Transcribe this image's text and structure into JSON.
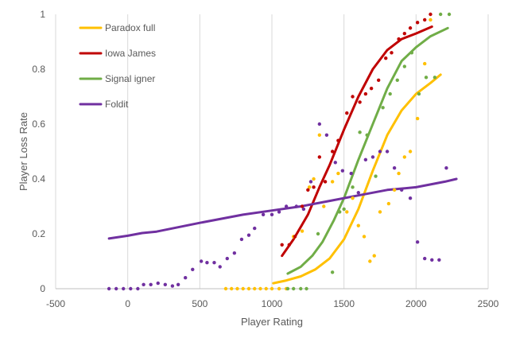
{
  "chart_data": {
    "type": "line",
    "title": "",
    "xlabel": "Player Rating",
    "ylabel": "Player Loss Rate",
    "xlim": [
      -500,
      2500
    ],
    "ylim": [
      0,
      1
    ],
    "x_ticks": [
      "-500",
      "0",
      "500",
      "1000",
      "1500",
      "2000",
      "2500"
    ],
    "y_ticks": [
      "0",
      "0.2",
      "0.4",
      "0.6",
      "0.8",
      "1"
    ],
    "grid": "vertical",
    "legend_position": "top-left",
    "series": [
      {
        "name": "Paradox full",
        "color": "#FFC000",
        "line": [
          [
            1010,
            0.02
          ],
          [
            1100,
            0.03
          ],
          [
            1200,
            0.045
          ],
          [
            1300,
            0.07
          ],
          [
            1400,
            0.11
          ],
          [
            1500,
            0.18
          ],
          [
            1600,
            0.29
          ],
          [
            1700,
            0.43
          ],
          [
            1800,
            0.56
          ],
          [
            1900,
            0.65
          ],
          [
            2000,
            0.71
          ],
          [
            2100,
            0.75
          ],
          [
            2170,
            0.78
          ]
        ],
        "points": [
          [
            680,
            0
          ],
          [
            720,
            0
          ],
          [
            760,
            0
          ],
          [
            800,
            0
          ],
          [
            840,
            0
          ],
          [
            880,
            0
          ],
          [
            920,
            0
          ],
          [
            960,
            0
          ],
          [
            1000,
            0
          ],
          [
            1050,
            0
          ],
          [
            1100,
            0
          ],
          [
            1150,
            0.19
          ],
          [
            1210,
            0.21
          ],
          [
            1260,
            0.37
          ],
          [
            1290,
            0.4
          ],
          [
            1330,
            0.56
          ],
          [
            1360,
            0.3
          ],
          [
            1420,
            0.39
          ],
          [
            1460,
            0.42
          ],
          [
            1520,
            0.28
          ],
          [
            1560,
            0.33
          ],
          [
            1600,
            0.23
          ],
          [
            1640,
            0.19
          ],
          [
            1680,
            0.1
          ],
          [
            1710,
            0.12
          ],
          [
            1750,
            0.28
          ],
          [
            1810,
            0.31
          ],
          [
            1850,
            0.36
          ],
          [
            1880,
            0.42
          ],
          [
            1920,
            0.48
          ],
          [
            1960,
            0.5
          ],
          [
            2010,
            0.62
          ],
          [
            2060,
            0.82
          ],
          [
            2100,
            0.98
          ]
        ]
      },
      {
        "name": "Iowa James",
        "color": "#C00000",
        "line": [
          [
            1070,
            0.12
          ],
          [
            1150,
            0.18
          ],
          [
            1250,
            0.27
          ],
          [
            1330,
            0.37
          ],
          [
            1400,
            0.45
          ],
          [
            1500,
            0.58
          ],
          [
            1600,
            0.7
          ],
          [
            1700,
            0.8
          ],
          [
            1800,
            0.87
          ],
          [
            1900,
            0.91
          ],
          [
            2000,
            0.93
          ],
          [
            2110,
            0.955
          ]
        ],
        "points": [
          [
            1070,
            0.16
          ],
          [
            1120,
            0.16
          ],
          [
            1160,
            0.19
          ],
          [
            1210,
            0.3
          ],
          [
            1250,
            0.36
          ],
          [
            1290,
            0.37
          ],
          [
            1330,
            0.48
          ],
          [
            1370,
            0.39
          ],
          [
            1420,
            0.5
          ],
          [
            1460,
            0.54
          ],
          [
            1520,
            0.64
          ],
          [
            1560,
            0.7
          ],
          [
            1610,
            0.68
          ],
          [
            1650,
            0.71
          ],
          [
            1690,
            0.73
          ],
          [
            1740,
            0.76
          ],
          [
            1790,
            0.84
          ],
          [
            1830,
            0.86
          ],
          [
            1880,
            0.91
          ],
          [
            1920,
            0.93
          ],
          [
            1960,
            0.95
          ],
          [
            2010,
            0.97
          ],
          [
            2060,
            0.98
          ],
          [
            2100,
            1.0
          ]
        ]
      },
      {
        "name": "Signal igner",
        "color": "#70AD47",
        "line": [
          [
            1110,
            0.055
          ],
          [
            1200,
            0.08
          ],
          [
            1280,
            0.12
          ],
          [
            1350,
            0.17
          ],
          [
            1430,
            0.25
          ],
          [
            1500,
            0.33
          ],
          [
            1600,
            0.47
          ],
          [
            1700,
            0.6
          ],
          [
            1800,
            0.73
          ],
          [
            1900,
            0.83
          ],
          [
            2000,
            0.88
          ],
          [
            2100,
            0.92
          ],
          [
            2220,
            0.95
          ]
        ],
        "points": [
          [
            1110,
            0
          ],
          [
            1150,
            0
          ],
          [
            1200,
            0
          ],
          [
            1240,
            0
          ],
          [
            1320,
            0.2
          ],
          [
            1420,
            0.06
          ],
          [
            1470,
            0.28
          ],
          [
            1500,
            0.29
          ],
          [
            1560,
            0.37
          ],
          [
            1610,
            0.57
          ],
          [
            1660,
            0.56
          ],
          [
            1720,
            0.41
          ],
          [
            1770,
            0.66
          ],
          [
            1820,
            0.71
          ],
          [
            1870,
            0.76
          ],
          [
            1920,
            0.81
          ],
          [
            1970,
            0.86
          ],
          [
            2020,
            0.71
          ],
          [
            2070,
            0.77
          ],
          [
            2130,
            0.77
          ],
          [
            2170,
            1.0
          ],
          [
            2230,
            1.0
          ]
        ]
      },
      {
        "name": "Foldit",
        "color": "#7030A0",
        "line": [
          [
            -130,
            0.183
          ],
          [
            0,
            0.193
          ],
          [
            100,
            0.203
          ],
          [
            200,
            0.208
          ],
          [
            500,
            0.24
          ],
          [
            800,
            0.27
          ],
          [
            1000,
            0.285
          ],
          [
            1200,
            0.3
          ],
          [
            1400,
            0.32
          ],
          [
            1600,
            0.34
          ],
          [
            1800,
            0.36
          ],
          [
            2000,
            0.37
          ],
          [
            2100,
            0.38
          ],
          [
            2200,
            0.39
          ],
          [
            2280,
            0.4
          ]
        ],
        "points": [
          [
            -130,
            0
          ],
          [
            -80,
            0
          ],
          [
            -30,
            0
          ],
          [
            20,
            0
          ],
          [
            70,
            0
          ],
          [
            110,
            0.015
          ],
          [
            160,
            0.015
          ],
          [
            210,
            0.02
          ],
          [
            260,
            0.015
          ],
          [
            310,
            0.01
          ],
          [
            350,
            0.015
          ],
          [
            400,
            0.04
          ],
          [
            450,
            0.07
          ],
          [
            510,
            0.1
          ],
          [
            550,
            0.095
          ],
          [
            600,
            0.095
          ],
          [
            640,
            0.08
          ],
          [
            690,
            0.11
          ],
          [
            740,
            0.13
          ],
          [
            790,
            0.18
          ],
          [
            840,
            0.195
          ],
          [
            880,
            0.22
          ],
          [
            940,
            0.27
          ],
          [
            1000,
            0.27
          ],
          [
            1050,
            0.28
          ],
          [
            1100,
            0.3
          ],
          [
            1170,
            0.3
          ],
          [
            1220,
            0.29
          ],
          [
            1270,
            0.39
          ],
          [
            1330,
            0.6
          ],
          [
            1380,
            0.56
          ],
          [
            1440,
            0.46
          ],
          [
            1490,
            0.43
          ],
          [
            1550,
            0.42
          ],
          [
            1600,
            0.35
          ],
          [
            1650,
            0.47
          ],
          [
            1700,
            0.48
          ],
          [
            1750,
            0.5
          ],
          [
            1800,
            0.5
          ],
          [
            1850,
            0.44
          ],
          [
            1900,
            0.36
          ],
          [
            1960,
            0.33
          ],
          [
            2010,
            0.17
          ],
          [
            2060,
            0.11
          ],
          [
            2110,
            0.105
          ],
          [
            2160,
            0.105
          ],
          [
            2210,
            0.44
          ]
        ]
      }
    ]
  }
}
